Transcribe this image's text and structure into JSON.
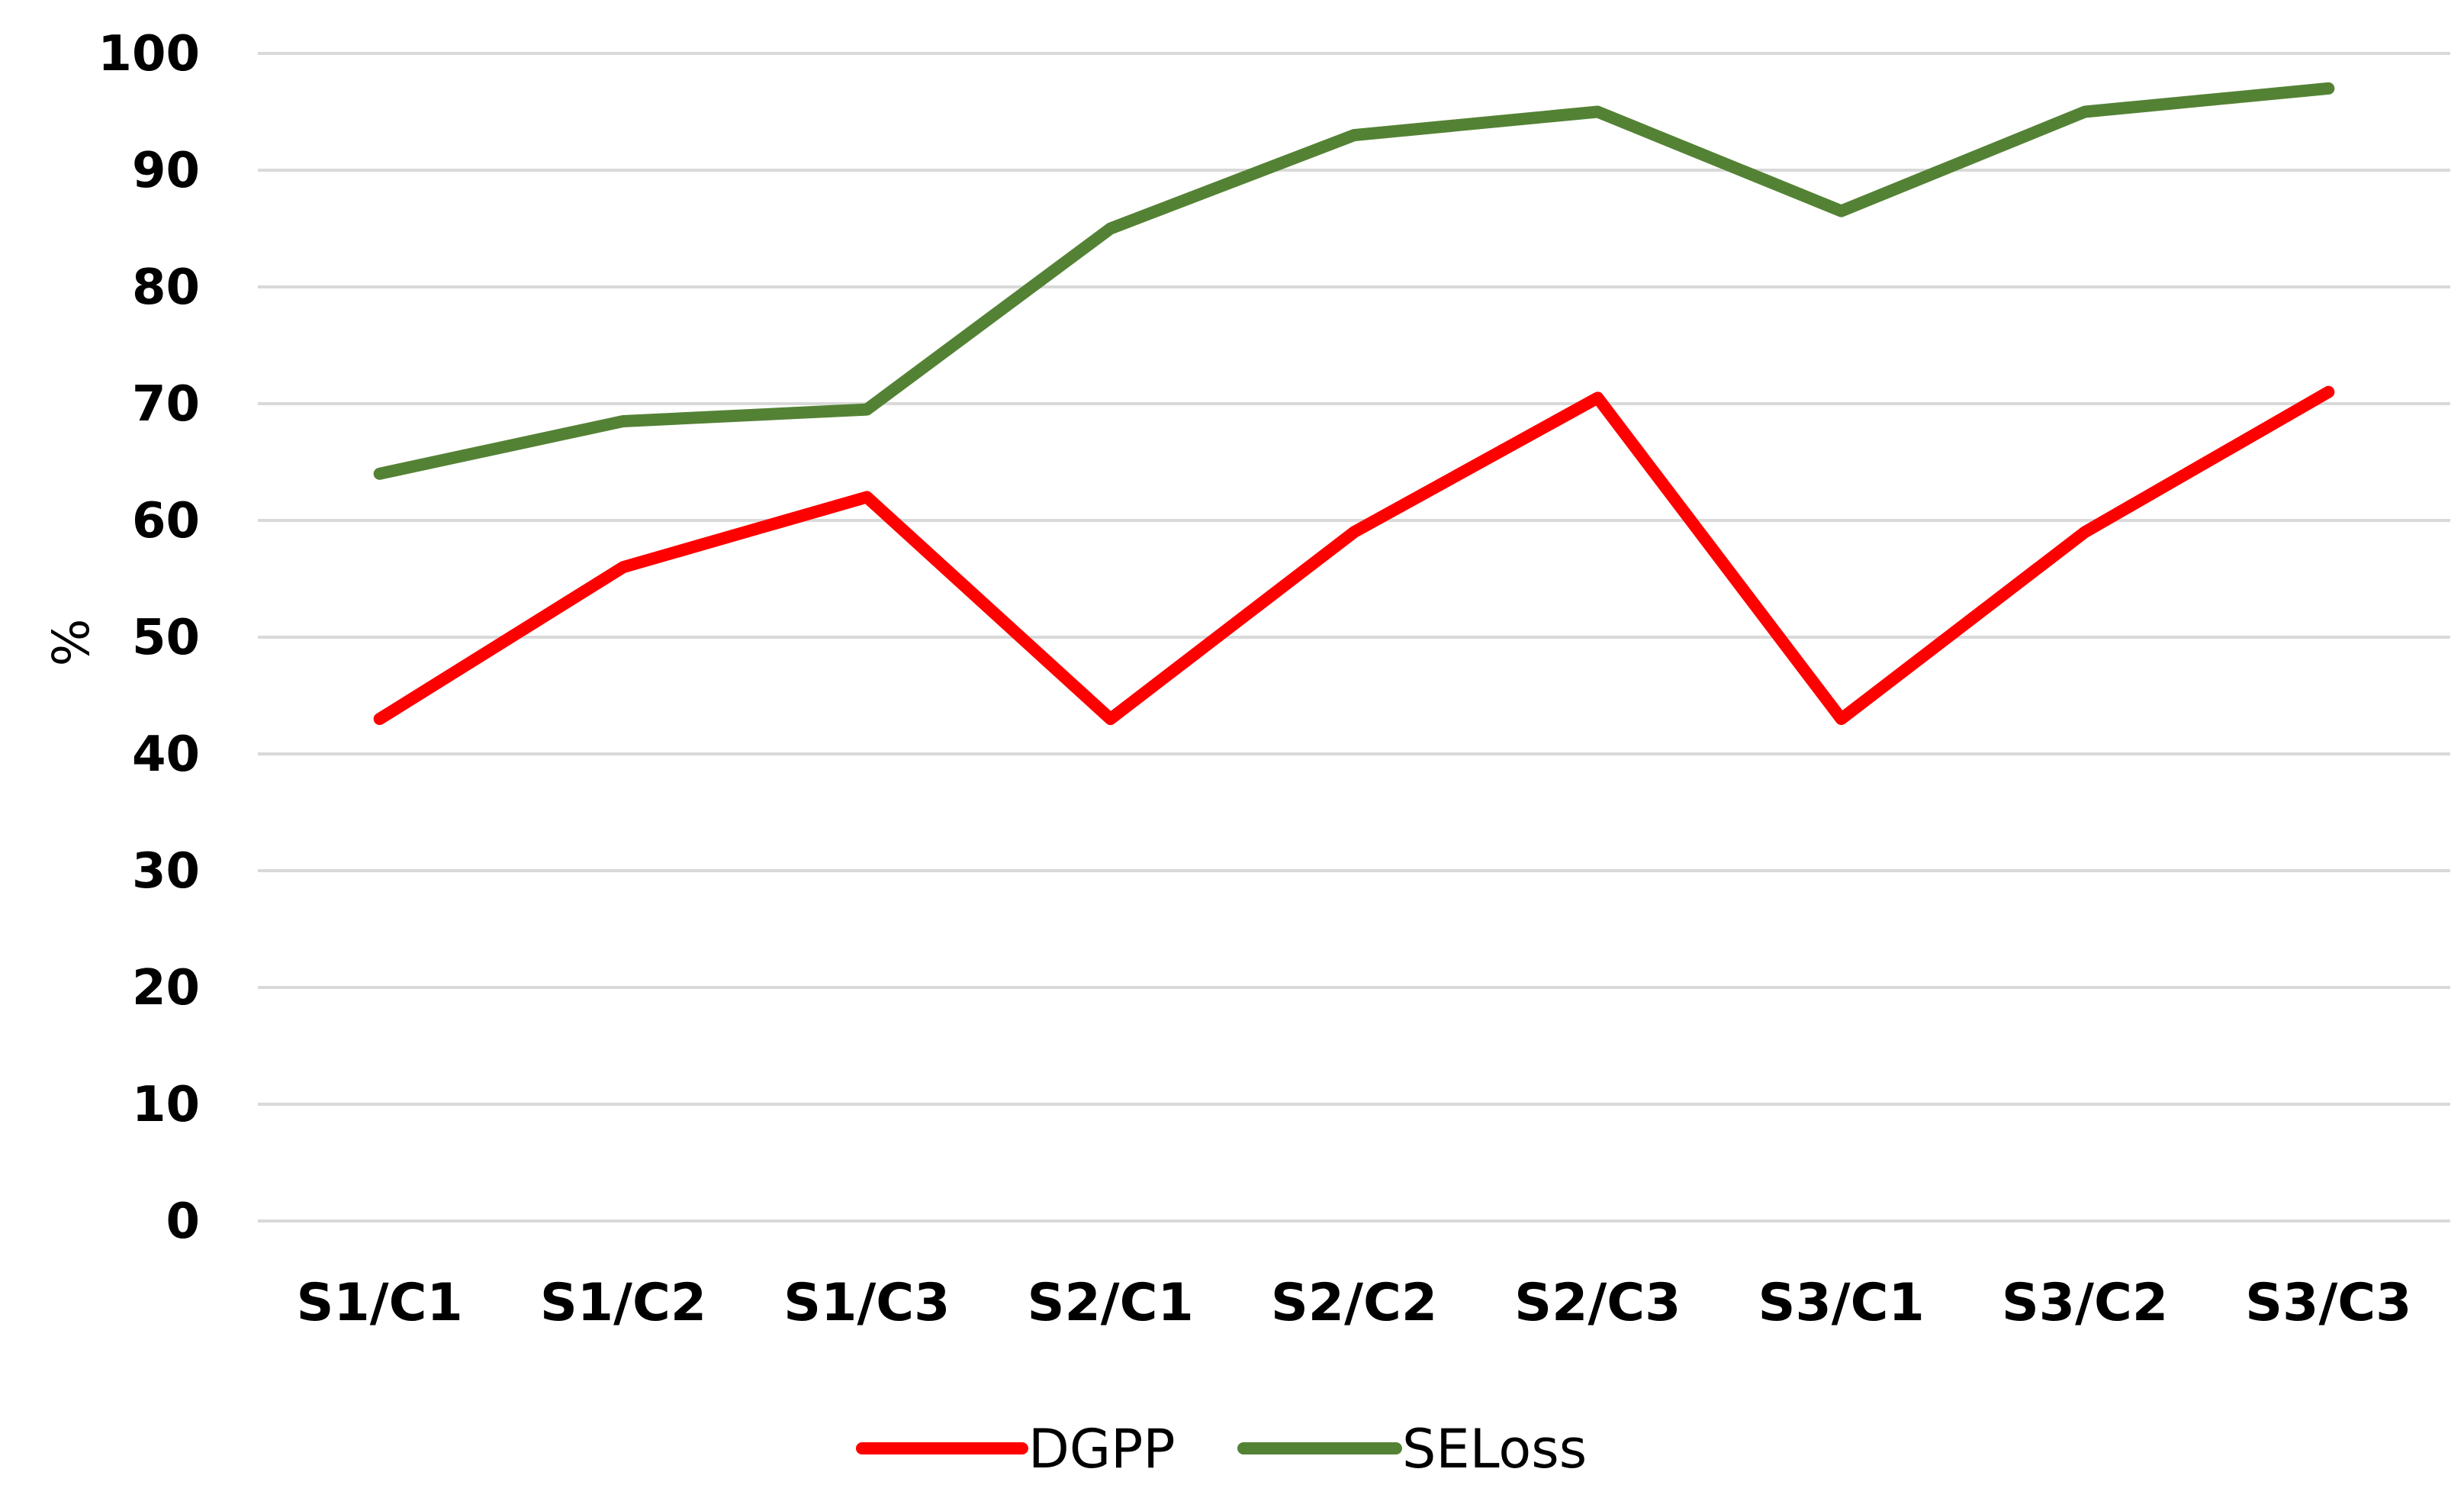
{
  "chart_data": {
    "type": "line",
    "title": "",
    "xlabel": "",
    "ylabel": "%",
    "ylim": [
      0,
      100
    ],
    "yticks": [
      "0",
      "10",
      "20",
      "30",
      "40",
      "50",
      "60",
      "70",
      "80",
      "90",
      "100"
    ],
    "categories": [
      "S1/C1",
      "S1/C2",
      "S1/C3",
      "S2/C1",
      "S2/C2",
      "S2/C3",
      "S3/C1",
      "S3/C2",
      "S3/C3"
    ],
    "grid": true,
    "legend_position": "bottom",
    "series": [
      {
        "name": "DGPP",
        "color": "#ff0000",
        "values": [
          43,
          56,
          62,
          43,
          59,
          70.5,
          43,
          59,
          71
        ]
      },
      {
        "name": "SELoss",
        "color": "#548235",
        "values": [
          64,
          68.5,
          69.5,
          85,
          93,
          95,
          86.5,
          95,
          97
        ]
      }
    ]
  }
}
